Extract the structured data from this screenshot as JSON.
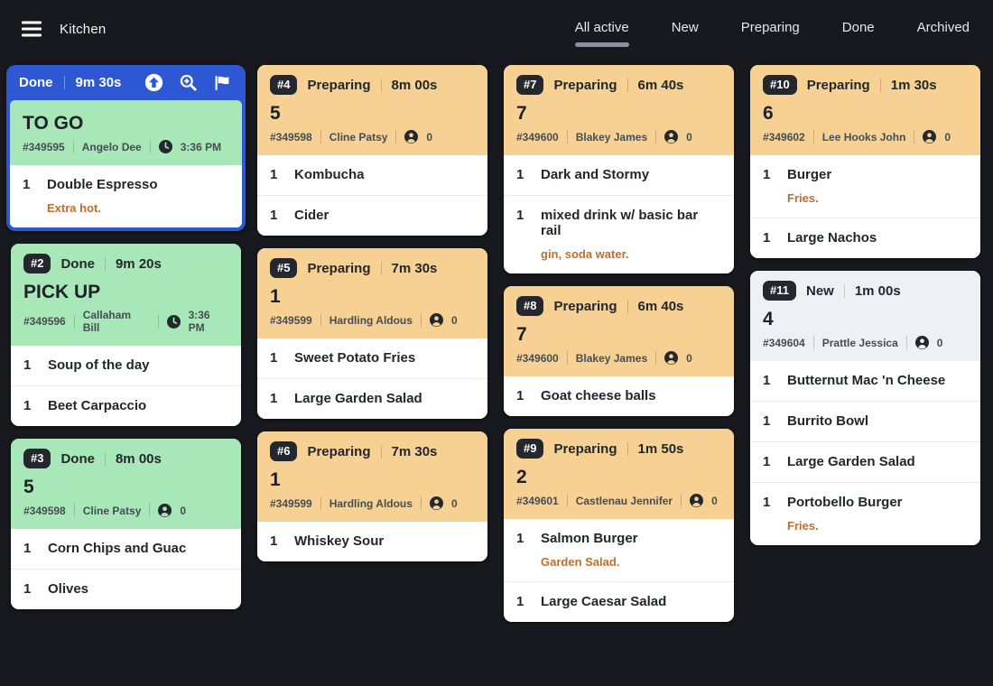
{
  "app": {
    "title": "Kitchen",
    "tabs": [
      {
        "label": "All active",
        "active": true
      },
      {
        "label": "New",
        "active": false
      },
      {
        "label": "Preparing",
        "active": false
      },
      {
        "label": "Done",
        "active": false
      },
      {
        "label": "Archived",
        "active": false
      }
    ]
  },
  "colors": {
    "background": "#17191e",
    "selected_blue": "#2e57d4",
    "done_green": "#a8e7b7",
    "preparing_orange": "#f6d193",
    "new_gray": "#eef0f3",
    "badge_bg": "#24282e",
    "modifier_orange": "#bf6e2b",
    "active_tab_underline": "#8b93a0"
  },
  "status_colors": {
    "Done": "#a8e7b7",
    "Preparing": "#f6d193",
    "New": "#eef0f3"
  },
  "cards": [
    {
      "column": 0,
      "selected": true,
      "badge": null,
      "status": "Done",
      "timer": "9m 30s",
      "actions": [
        {
          "icon": "arrow-up-circle-icon"
        },
        {
          "icon": "zoom-in-icon"
        },
        {
          "icon": "flag-icon"
        }
      ],
      "title": "TO GO",
      "order_id": "#349595",
      "customer": "Angelo Dee",
      "meta_icon": "clock-icon",
      "meta_value": "3:36 PM",
      "items": [
        {
          "qty": "1",
          "name": "Double Espresso",
          "modifier": "Extra hot."
        }
      ]
    },
    {
      "column": 0,
      "selected": false,
      "badge": "#2",
      "status": "Done",
      "timer": "9m 20s",
      "title": "PICK UP",
      "order_id": "#349596",
      "customer": "Callaham Bill",
      "meta_icon": "clock-icon",
      "meta_value": "3:36 PM",
      "items": [
        {
          "qty": "1",
          "name": "Soup of the day",
          "modifier": null
        },
        {
          "qty": "1",
          "name": "Beet Carpaccio",
          "modifier": null
        }
      ]
    },
    {
      "column": 0,
      "selected": false,
      "badge": "#3",
      "status": "Done",
      "timer": "8m 00s",
      "title": "5",
      "order_id": "#349598",
      "customer": "Cline Patsy",
      "meta_icon": "person-icon",
      "meta_value": "0",
      "items": [
        {
          "qty": "1",
          "name": "Corn Chips and Guac",
          "modifier": null
        },
        {
          "qty": "1",
          "name": "Olives",
          "modifier": null
        }
      ]
    },
    {
      "column": 1,
      "selected": false,
      "badge": "#4",
      "status": "Preparing",
      "timer": "8m 00s",
      "title": "5",
      "order_id": "#349598",
      "customer": "Cline Patsy",
      "meta_icon": "person-icon",
      "meta_value": "0",
      "items": [
        {
          "qty": "1",
          "name": "Kombucha",
          "modifier": null
        },
        {
          "qty": "1",
          "name": "Cider",
          "modifier": null
        }
      ]
    },
    {
      "column": 1,
      "selected": false,
      "badge": "#5",
      "status": "Preparing",
      "timer": "7m 30s",
      "title": "1",
      "order_id": "#349599",
      "customer": "Hardling Aldous",
      "meta_icon": "person-icon",
      "meta_value": "0",
      "items": [
        {
          "qty": "1",
          "name": "Sweet Potato Fries",
          "modifier": null
        },
        {
          "qty": "1",
          "name": "Large Garden Salad",
          "modifier": null
        }
      ]
    },
    {
      "column": 1,
      "selected": false,
      "badge": "#6",
      "status": "Preparing",
      "timer": "7m 30s",
      "title": "1",
      "order_id": "#349599",
      "customer": "Hardling Aldous",
      "meta_icon": "person-icon",
      "meta_value": "0",
      "items": [
        {
          "qty": "1",
          "name": "Whiskey Sour",
          "modifier": null
        }
      ]
    },
    {
      "column": 2,
      "selected": false,
      "badge": "#7",
      "status": "Preparing",
      "timer": "6m 40s",
      "title": "7",
      "order_id": "#349600",
      "customer": "Blakey James",
      "meta_icon": "person-icon",
      "meta_value": "0",
      "items": [
        {
          "qty": "1",
          "name": "Dark and Stormy",
          "modifier": null
        },
        {
          "qty": "1",
          "name": "mixed drink w/ basic bar rail",
          "modifier": "gin, soda water."
        }
      ]
    },
    {
      "column": 2,
      "selected": false,
      "badge": "#8",
      "status": "Preparing",
      "timer": "6m 40s",
      "title": "7",
      "order_id": "#349600",
      "customer": "Blakey James",
      "meta_icon": "person-icon",
      "meta_value": "0",
      "items": [
        {
          "qty": "1",
          "name": "Goat cheese balls",
          "modifier": null
        }
      ]
    },
    {
      "column": 2,
      "selected": false,
      "badge": "#9",
      "status": "Preparing",
      "timer": "1m 50s",
      "title": "2",
      "order_id": "#349601",
      "customer": "Castlenau Jennifer",
      "meta_icon": "person-icon",
      "meta_value": "0",
      "items": [
        {
          "qty": "1",
          "name": "Salmon Burger",
          "modifier": "Garden Salad."
        },
        {
          "qty": "1",
          "name": "Large Caesar Salad",
          "modifier": null
        }
      ]
    },
    {
      "column": 3,
      "selected": false,
      "badge": "#10",
      "status": "Preparing",
      "timer": "1m 30s",
      "title": "6",
      "order_id": "#349602",
      "customer": "Lee Hooks John",
      "meta_icon": "person-icon",
      "meta_value": "0",
      "items": [
        {
          "qty": "1",
          "name": "Burger",
          "modifier": "Fries."
        },
        {
          "qty": "1",
          "name": "Large Nachos",
          "modifier": null
        }
      ]
    },
    {
      "column": 3,
      "selected": false,
      "badge": "#11",
      "status": "New",
      "timer": "1m 00s",
      "title": "4",
      "order_id": "#349604",
      "customer": "Prattle Jessica",
      "meta_icon": "person-icon",
      "meta_value": "0",
      "items": [
        {
          "qty": "1",
          "name": "Butternut Mac 'n Cheese",
          "modifier": null
        },
        {
          "qty": "1",
          "name": "Burrito Bowl",
          "modifier": null
        },
        {
          "qty": "1",
          "name": "Large Garden Salad",
          "modifier": null
        },
        {
          "qty": "1",
          "name": "Portobello Burger",
          "modifier": "Fries."
        }
      ]
    }
  ]
}
